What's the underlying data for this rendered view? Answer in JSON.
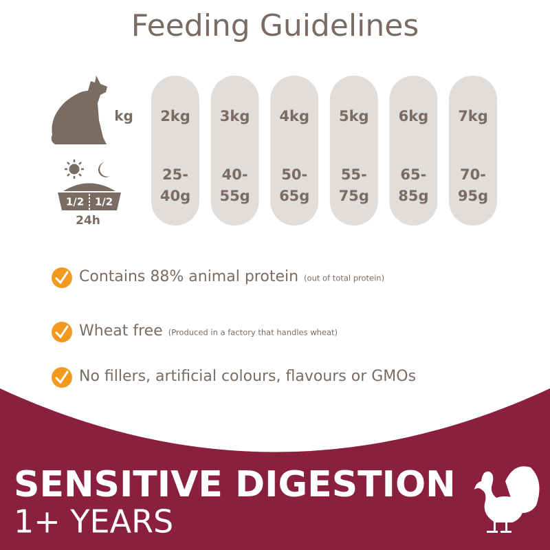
{
  "title": "Feeding Guidelines",
  "weight_label": "kg",
  "bowl": {
    "left": "1/2",
    "right": "1/2",
    "period": "24h"
  },
  "columns": [
    {
      "weight": "2kg",
      "amount": [
        "25-",
        "40g"
      ]
    },
    {
      "weight": "3kg",
      "amount": [
        "40-",
        "55g"
      ]
    },
    {
      "weight": "4kg",
      "amount": [
        "50-",
        "65g"
      ]
    },
    {
      "weight": "5kg",
      "amount": [
        "55-",
        "75g"
      ]
    },
    {
      "weight": "6kg",
      "amount": [
        "65-",
        "85g"
      ]
    },
    {
      "weight": "7kg",
      "amount": [
        "70-",
        "95g"
      ]
    }
  ],
  "benefits": [
    {
      "text": "Contains 88% animal protein",
      "note": "(out of total protein)"
    },
    {
      "text": "Wheat free",
      "note": "(Produced in a factory that handles wheat)"
    },
    {
      "text": "No fillers, artificial colours, flavours or GMOs"
    }
  ],
  "banner": {
    "title": "SENSITIVE DIGESTION",
    "subtitle": "1+ YEARS"
  }
}
